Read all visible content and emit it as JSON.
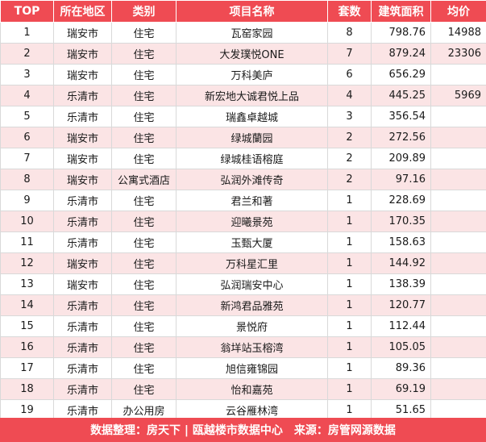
{
  "columns": [
    "TOP",
    "所在地区",
    "类别",
    "项目名称",
    "套数",
    "建筑面积",
    "均价"
  ],
  "rows": [
    {
      "top": "1",
      "region": "瑞安市",
      "category": "住宅",
      "name": "瓦窑家园",
      "units": "8",
      "area": "798.76",
      "price": "14988"
    },
    {
      "top": "2",
      "region": "瑞安市",
      "category": "住宅",
      "name": "大发璞悦ONE",
      "units": "7",
      "area": "879.24",
      "price": "23306"
    },
    {
      "top": "3",
      "region": "瑞安市",
      "category": "住宅",
      "name": "万科美庐",
      "units": "6",
      "area": "656.29",
      "price": ""
    },
    {
      "top": "4",
      "region": "乐清市",
      "category": "住宅",
      "name": "新宏地大诚君悦上品",
      "units": "4",
      "area": "445.25",
      "price": "5969"
    },
    {
      "top": "5",
      "region": "乐清市",
      "category": "住宅",
      "name": "瑞鑫卓越城",
      "units": "3",
      "area": "356.54",
      "price": ""
    },
    {
      "top": "6",
      "region": "瑞安市",
      "category": "住宅",
      "name": "绿城蘭园",
      "units": "2",
      "area": "272.56",
      "price": ""
    },
    {
      "top": "7",
      "region": "瑞安市",
      "category": "住宅",
      "name": "绿城桂语榕庭",
      "units": "2",
      "area": "209.89",
      "price": ""
    },
    {
      "top": "8",
      "region": "瑞安市",
      "category": "公寓式酒店",
      "name": "弘润外滩传奇",
      "units": "2",
      "area": "97.16",
      "price": ""
    },
    {
      "top": "9",
      "region": "乐清市",
      "category": "住宅",
      "name": "君兰和著",
      "units": "1",
      "area": "228.69",
      "price": ""
    },
    {
      "top": "10",
      "region": "乐清市",
      "category": "住宅",
      "name": "迎曦景苑",
      "units": "1",
      "area": "170.35",
      "price": ""
    },
    {
      "top": "11",
      "region": "乐清市",
      "category": "住宅",
      "name": "玉甄大厦",
      "units": "1",
      "area": "158.63",
      "price": ""
    },
    {
      "top": "12",
      "region": "瑞安市",
      "category": "住宅",
      "name": "万科星汇里",
      "units": "1",
      "area": "144.92",
      "price": ""
    },
    {
      "top": "13",
      "region": "瑞安市",
      "category": "住宅",
      "name": "弘润瑞安中心",
      "units": "1",
      "area": "138.39",
      "price": ""
    },
    {
      "top": "14",
      "region": "乐清市",
      "category": "住宅",
      "name": "新鸿君品雅苑",
      "units": "1",
      "area": "120.77",
      "price": ""
    },
    {
      "top": "15",
      "region": "乐清市",
      "category": "住宅",
      "name": "景悦府",
      "units": "1",
      "area": "112.44",
      "price": ""
    },
    {
      "top": "16",
      "region": "乐清市",
      "category": "住宅",
      "name": "翁垟站玉榕湾",
      "units": "1",
      "area": "105.05",
      "price": ""
    },
    {
      "top": "17",
      "region": "乐清市",
      "category": "住宅",
      "name": "旭信雍锦园",
      "units": "1",
      "area": "89.36",
      "price": ""
    },
    {
      "top": "18",
      "region": "乐清市",
      "category": "住宅",
      "name": "怡和嘉苑",
      "units": "1",
      "area": "69.19",
      "price": ""
    },
    {
      "top": "19",
      "region": "乐清市",
      "category": "办公用房",
      "name": "云谷雁林湾",
      "units": "1",
      "area": "51.65",
      "price": ""
    }
  ],
  "footer": "数据整理：房天下 | 瓯越楼市数据中心　来源：房管网源数据",
  "colors": {
    "header_bg": "#ef4b53",
    "stripe": "#fbe4e5",
    "header_text": "#ffffff"
  }
}
